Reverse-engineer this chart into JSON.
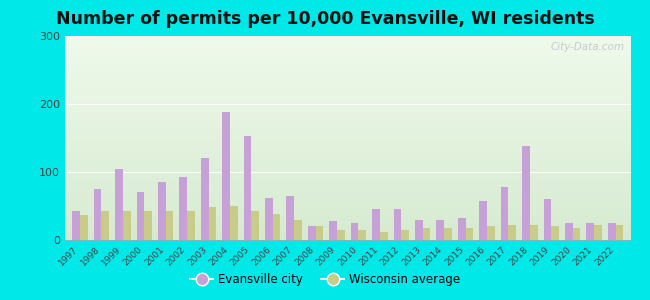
{
  "title": "Number of permits per 10,000 Evansville, WI residents",
  "years": [
    1997,
    1998,
    1999,
    2000,
    2001,
    2002,
    2003,
    2004,
    2005,
    2006,
    2007,
    2008,
    2009,
    2010,
    2011,
    2012,
    2013,
    2014,
    2015,
    2016,
    2017,
    2018,
    2019,
    2020,
    2021,
    2022
  ],
  "evansville": [
    42,
    75,
    104,
    70,
    85,
    93,
    120,
    188,
    153,
    62,
    65,
    20,
    28,
    25,
    45,
    45,
    30,
    30,
    32,
    58,
    78,
    138,
    60,
    25,
    25,
    25
  ],
  "wisconsin": [
    37,
    42,
    42,
    42,
    42,
    42,
    48,
    50,
    42,
    38,
    30,
    20,
    15,
    14,
    12,
    14,
    18,
    18,
    18,
    20,
    22,
    22,
    20,
    18,
    22,
    22
  ],
  "evansville_color": "#c8a0d8",
  "wisconsin_color": "#c8cc88",
  "background_outer": "#00e8e8",
  "background_plot": "#eaf5e8",
  "title_fontsize": 12.5,
  "ylim": [
    0,
    300
  ],
  "yticks": [
    0,
    100,
    200,
    300
  ],
  "watermark": "City-Data.com",
  "legend_evansville": "Evansville city",
  "legend_wisconsin": "Wisconsin average"
}
